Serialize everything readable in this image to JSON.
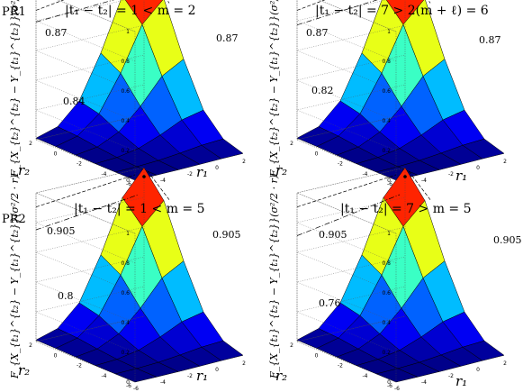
{
  "row_labels": [
    "PR1",
    "PR2"
  ],
  "panels": [
    {
      "title": "|t₁ − t₂| = 1 < m = 2",
      "zlabel": "F_{X_{t₂}^{t₂} − Y_{t₁}^{t₂}}(σ²/2 · r)",
      "xlabel": "r₁",
      "ylabel": "r₂",
      "annotations": [
        "0.87",
        "0.87",
        "0.84"
      ]
    },
    {
      "title": "|t₁ − t₂| = 7 > 2(m + ℓ) = 6",
      "zlabel": "F_{X_{t₂}^{t₂} − Y_{t₁}^{t₂}}(σ²/2 · r)",
      "xlabel": "r₁",
      "ylabel": "r₂",
      "annotations": [
        "0.87",
        "0.87",
        "0.82"
      ]
    },
    {
      "title": "|t₁ − t₂| = 1 < m = 5",
      "zlabel": "F_{X_{t₁}^{t₂} − Y_{t₁}^{t₂}}(σ²/2 · r)",
      "xlabel": "r₁",
      "ylabel": "r₂",
      "annotations": [
        "0.905",
        "0.905",
        "0.8"
      ]
    },
    {
      "title": "|t₁ − t₂| = 7 > m = 5",
      "zlabel": "F_{X_{t₁}^{t₂} − Y_{t₁}^{t₂}}(σ²/2 · r)",
      "xlabel": "r₁",
      "ylabel": "r₂",
      "annotations": [
        "0.905",
        "0.905",
        "0.76"
      ]
    }
  ],
  "axis_ticks": {
    "z": [
      "0",
      "0.2",
      "0.4",
      "0.6",
      "0.8",
      "1"
    ],
    "r1": [
      "-6",
      "-4",
      "-2",
      "0",
      "2"
    ],
    "r2": [
      "2",
      "0",
      "-2",
      "-4",
      "-6"
    ]
  },
  "chart_data": [
    {
      "type": "surface",
      "title": "|t₁ − t₂| = 1 < m = 2",
      "x": [
        -6,
        -4.4,
        -2.8,
        -1.2,
        0.4,
        2
      ],
      "y": [
        -6,
        -4.4,
        -2.8,
        -1.2,
        0.4,
        2
      ],
      "zlim": [
        0,
        1
      ],
      "xlim": [
        -6,
        2
      ],
      "ylim": [
        -6,
        2
      ],
      "annotations": [
        0.87,
        0.87,
        0.84
      ],
      "colormap": "jet"
    },
    {
      "type": "surface",
      "title": "|t₁ − t₂| = 7 > 2(m + ℓ) = 6",
      "x": [
        -6,
        -4.4,
        -2.8,
        -1.2,
        0.4,
        2
      ],
      "y": [
        -6,
        -4.4,
        -2.8,
        -1.2,
        0.4,
        2
      ],
      "zlim": [
        0,
        1
      ],
      "xlim": [
        -6,
        2
      ],
      "ylim": [
        -6,
        2
      ],
      "annotations": [
        0.87,
        0.87,
        0.82
      ],
      "colormap": "jet"
    },
    {
      "type": "surface",
      "title": "|t₁ − t₂| = 1 < m = 5",
      "x": [
        -6,
        -4.4,
        -2.8,
        -1.2,
        0.4,
        2
      ],
      "y": [
        -6,
        -4.4,
        -2.8,
        -1.2,
        0.4,
        2
      ],
      "zlim": [
        0,
        1
      ],
      "xlim": [
        -6,
        2
      ],
      "ylim": [
        -6,
        2
      ],
      "annotations": [
        0.905,
        0.905,
        0.8
      ],
      "colormap": "jet"
    },
    {
      "type": "surface",
      "title": "|t₁ − t₂| = 7 > m = 5",
      "x": [
        -6,
        -4.4,
        -2.8,
        -1.2,
        0.4,
        2
      ],
      "y": [
        -6,
        -4.4,
        -2.8,
        -1.2,
        0.4,
        2
      ],
      "zlim": [
        0,
        1
      ],
      "xlim": [
        -6,
        2
      ],
      "ylim": [
        -6,
        2
      ],
      "annotations": [
        0.905,
        0.905,
        0.76
      ],
      "colormap": "jet"
    }
  ]
}
